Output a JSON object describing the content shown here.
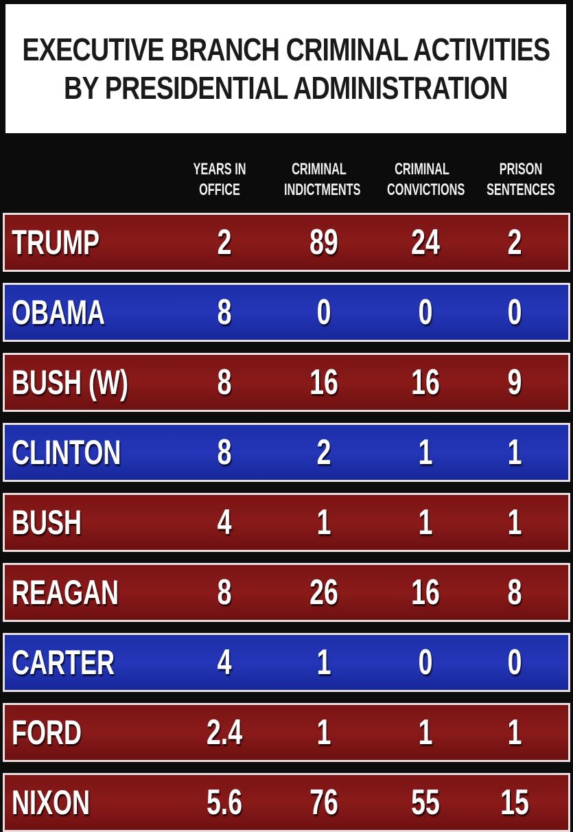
{
  "title": {
    "line1": "EXECUTIVE BRANCH CRIMINAL ACTIVITIES",
    "line2": "BY PRESIDENTIAL ADMINISTRATION"
  },
  "colors": {
    "red_row": "#7a1414",
    "blue_row": "#1c2fa8",
    "header_bg": "#0c0c0c"
  },
  "chart_data": {
    "type": "table",
    "title": "EXECUTIVE BRANCH CRIMINAL ACTIVITIES BY PRESIDENTIAL ADMINISTRATION",
    "columns": [
      {
        "line1": "YEARS IN",
        "line2": "OFFICE"
      },
      {
        "line1": "CRIMINAL",
        "line2": "INDICTMENTS"
      },
      {
        "line1": "CRIMINAL",
        "line2": "CONVICTIONS"
      },
      {
        "line1": "PRISON",
        "line2": "SENTENCES"
      }
    ],
    "rows": [
      {
        "name": "TRUMP",
        "color": "red",
        "values": [
          "2",
          "89",
          "24",
          "2"
        ]
      },
      {
        "name": "OBAMA",
        "color": "blue",
        "values": [
          "8",
          "0",
          "0",
          "0"
        ]
      },
      {
        "name": "BUSH (W)",
        "color": "red",
        "values": [
          "8",
          "16",
          "16",
          "9"
        ]
      },
      {
        "name": "CLINTON",
        "color": "blue",
        "values": [
          "8",
          "2",
          "1",
          "1"
        ]
      },
      {
        "name": "BUSH",
        "color": "red",
        "values": [
          "4",
          "1",
          "1",
          "1"
        ]
      },
      {
        "name": "REAGAN",
        "color": "red",
        "values": [
          "8",
          "26",
          "16",
          "8"
        ]
      },
      {
        "name": "CARTER",
        "color": "blue",
        "values": [
          "4",
          "1",
          "0",
          "0"
        ]
      },
      {
        "name": "FORD",
        "color": "red",
        "values": [
          "2.4",
          "1",
          "1",
          "1"
        ]
      },
      {
        "name": "NIXON",
        "color": "red",
        "values": [
          "5.6",
          "76",
          "55",
          "15"
        ]
      }
    ]
  }
}
